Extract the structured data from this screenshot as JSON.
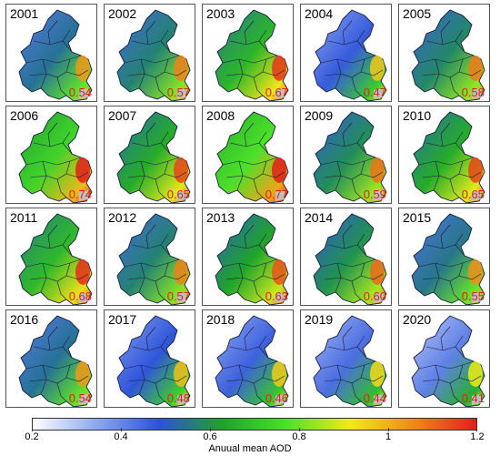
{
  "figure": {
    "panels": [
      {
        "year": "2001",
        "mean": "0.54",
        "level": 0.54
      },
      {
        "year": "2002",
        "mean": "0.57",
        "level": 0.57
      },
      {
        "year": "2003",
        "mean": "0.67",
        "level": 0.67
      },
      {
        "year": "2004",
        "mean": "0.47",
        "level": 0.47
      },
      {
        "year": "2005",
        "mean": "0.58",
        "level": 0.58
      },
      {
        "year": "2006",
        "mean": "0.74",
        "level": 0.74
      },
      {
        "year": "2007",
        "mean": "0.65",
        "level": 0.65
      },
      {
        "year": "2008",
        "mean": "0.77",
        "level": 0.77
      },
      {
        "year": "2009",
        "mean": "0.59",
        "level": 0.59
      },
      {
        "year": "2010",
        "mean": "0.65",
        "level": 0.65
      },
      {
        "year": "2011",
        "mean": "0.68",
        "level": 0.68
      },
      {
        "year": "2012",
        "mean": "0.57",
        "level": 0.57
      },
      {
        "year": "2013",
        "mean": "0.63",
        "level": 0.63
      },
      {
        "year": "2014",
        "mean": "0.60",
        "level": 0.6
      },
      {
        "year": "2015",
        "mean": "0.55",
        "level": 0.55
      },
      {
        "year": "2016",
        "mean": "0.54",
        "level": 0.54
      },
      {
        "year": "2017",
        "mean": "0.48",
        "level": 0.48
      },
      {
        "year": "2018",
        "mean": "0.46",
        "level": 0.46
      },
      {
        "year": "2019",
        "mean": "0.44",
        "level": 0.44
      },
      {
        "year": "2020",
        "mean": "0.41",
        "level": 0.41
      }
    ],
    "colorbar": {
      "title": "Anuual mean AOD",
      "min": 0.2,
      "max": 1.2,
      "ticks": [
        {
          "value": 0.2,
          "label": "0.2"
        },
        {
          "value": 0.4,
          "label": "0.4"
        },
        {
          "value": 0.6,
          "label": "0.6"
        },
        {
          "value": 0.8,
          "label": "0.8"
        },
        {
          "value": 1.0,
          "label": "1"
        },
        {
          "value": 1.2,
          "label": "1.2"
        }
      ],
      "colors": [
        "#ffffff",
        "#8ea8f0",
        "#2b52d9",
        "#1fa32a",
        "#4be12a",
        "#f2ea1a",
        "#f08a1a",
        "#e0201a"
      ]
    },
    "colors": {
      "mean_text": "#e02020",
      "boundary": "#1a1a3a",
      "snow_patch": "#bfbfbf"
    }
  }
}
